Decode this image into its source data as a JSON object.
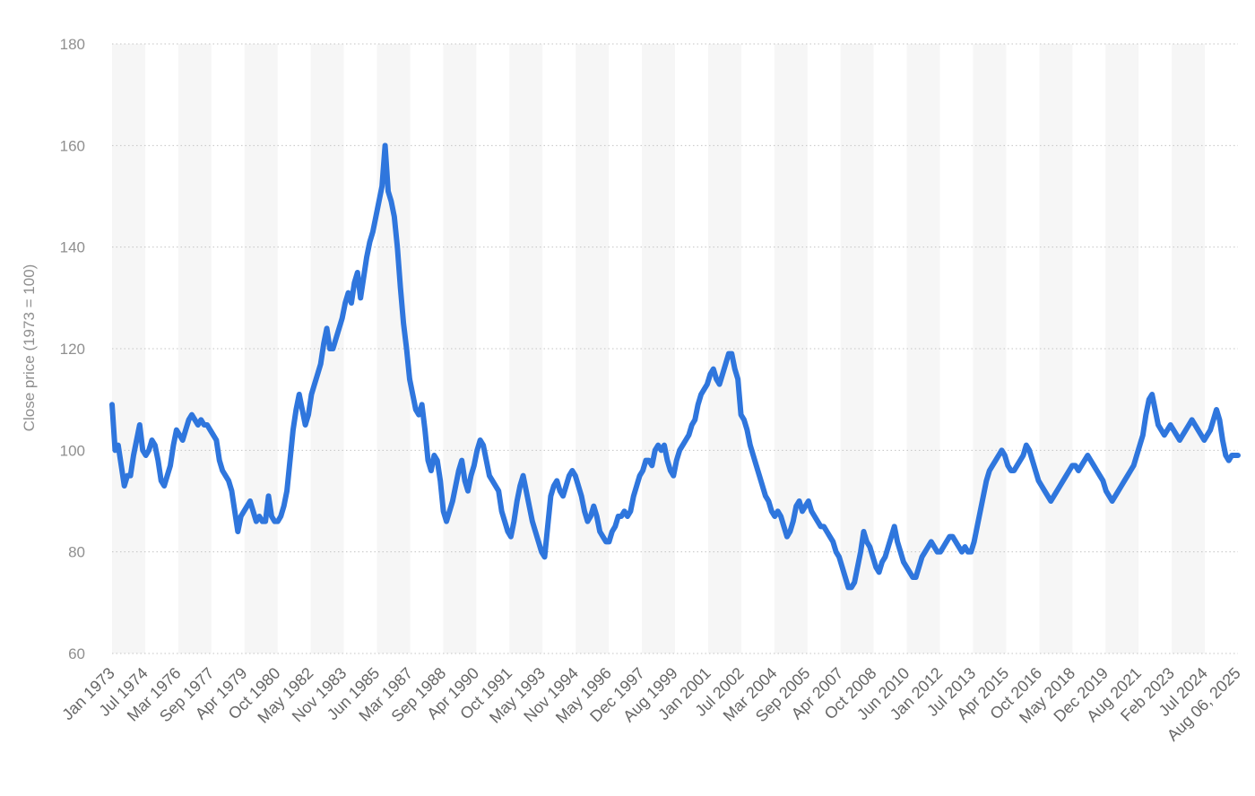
{
  "colors": {
    "line": "#2f76dd",
    "band": "#f6f6f6",
    "grid": "#c4c4c4",
    "text": "#8f8f8f"
  },
  "chart_data": {
    "type": "line",
    "ylabel": "Close price (1973 = 100)",
    "ylim": [
      60,
      180
    ],
    "yticks": [
      60,
      80,
      100,
      120,
      140,
      160,
      180
    ],
    "grid": true,
    "x_labels": [
      "Jan 1973",
      "Jul 1974",
      "Mar 1976",
      "Sep 1977",
      "Apr 1979",
      "Oct 1980",
      "May 1982",
      "Nov 1983",
      "Jun 1985",
      "Mar 1987",
      "Sep 1988",
      "Apr 1990",
      "Oct 1991",
      "May 1993",
      "Nov 1994",
      "May 1996",
      "Dec 1997",
      "Aug 1999",
      "Jan 2001",
      "Jul 2002",
      "Mar 2004",
      "Sep 2005",
      "Apr 2007",
      "Oct 2008",
      "Jun 2010",
      "Jan 2012",
      "Jul 2013",
      "Apr 2015",
      "Oct 2016",
      "May 2018",
      "Dec 2019",
      "Aug 2021",
      "Feb 2023",
      "Jul 2024",
      "Aug 06, 2025"
    ],
    "series": [
      {
        "values": [
          109,
          100,
          101,
          97,
          93,
          95,
          95,
          99,
          102,
          105,
          100,
          99,
          100,
          102,
          101,
          98,
          94,
          93,
          95,
          97,
          101,
          104,
          103,
          102,
          104,
          106,
          107,
          106,
          105,
          106,
          105,
          105,
          104,
          103,
          102,
          98,
          96,
          95,
          94,
          92,
          88,
          84,
          87,
          88,
          89,
          90,
          88,
          86,
          87,
          86,
          86,
          91,
          87,
          86,
          86,
          87,
          89,
          92,
          98,
          104,
          108,
          111,
          108,
          105,
          107,
          111,
          113,
          115,
          117,
          121,
          124,
          120,
          120,
          122,
          124,
          126,
          129,
          131,
          129,
          133,
          135,
          130,
          134,
          138,
          141,
          143,
          146,
          149,
          152,
          160,
          151,
          149,
          146,
          140,
          132,
          125,
          120,
          114,
          111,
          108,
          107,
          109,
          104,
          98,
          96,
          99,
          98,
          94,
          88,
          86,
          88,
          90,
          93,
          96,
          98,
          94,
          92,
          95,
          97,
          100,
          102,
          101,
          98,
          95,
          94,
          93,
          92,
          88,
          86,
          84,
          83,
          86,
          90,
          93,
          95,
          92,
          89,
          86,
          84,
          82,
          80,
          79,
          85,
          91,
          93,
          94,
          92,
          91,
          93,
          95,
          96,
          95,
          93,
          91,
          88,
          86,
          87,
          89,
          87,
          84,
          83,
          82,
          82,
          84,
          85,
          87,
          87,
          88,
          87,
          88,
          91,
          93,
          95,
          96,
          98,
          98,
          97,
          100,
          101,
          100,
          101,
          98,
          96,
          95,
          98,
          100,
          101,
          102,
          103,
          105,
          106,
          109,
          111,
          112,
          113,
          115,
          116,
          114,
          113,
          115,
          117,
          119,
          119,
          116,
          114,
          107,
          106,
          104,
          101,
          99,
          97,
          95,
          93,
          91,
          90,
          88,
          87,
          88,
          87,
          85,
          83,
          84,
          86,
          89,
          90,
          88,
          89,
          90,
          88,
          87,
          86,
          85,
          85,
          84,
          83,
          82,
          80,
          79,
          77,
          75,
          73,
          73,
          74,
          77,
          80,
          84,
          82,
          81,
          79,
          77,
          76,
          78,
          79,
          81,
          83,
          85,
          82,
          80,
          78,
          77,
          76,
          75,
          75,
          77,
          79,
          80,
          81,
          82,
          81,
          80,
          80,
          81,
          82,
          83,
          83,
          82,
          81,
          80,
          81,
          80,
          80,
          82,
          85,
          88,
          91,
          94,
          96,
          97,
          98,
          99,
          100,
          99,
          97,
          96,
          96,
          97,
          98,
          99,
          101,
          100,
          98,
          96,
          94,
          93,
          92,
          91,
          90,
          91,
          92,
          93,
          94,
          95,
          96,
          97,
          97,
          96,
          97,
          98,
          99,
          98,
          97,
          96,
          95,
          94,
          92,
          91,
          90,
          91,
          92,
          93,
          94,
          95,
          96,
          97,
          99,
          101,
          103,
          107,
          110,
          111,
          108,
          105,
          104,
          103,
          104,
          105,
          104,
          103,
          102,
          103,
          104,
          105,
          106,
          105,
          104,
          103,
          102,
          103,
          104,
          106,
          108,
          106,
          102,
          99,
          98,
          99,
          99,
          99
        ]
      }
    ]
  }
}
